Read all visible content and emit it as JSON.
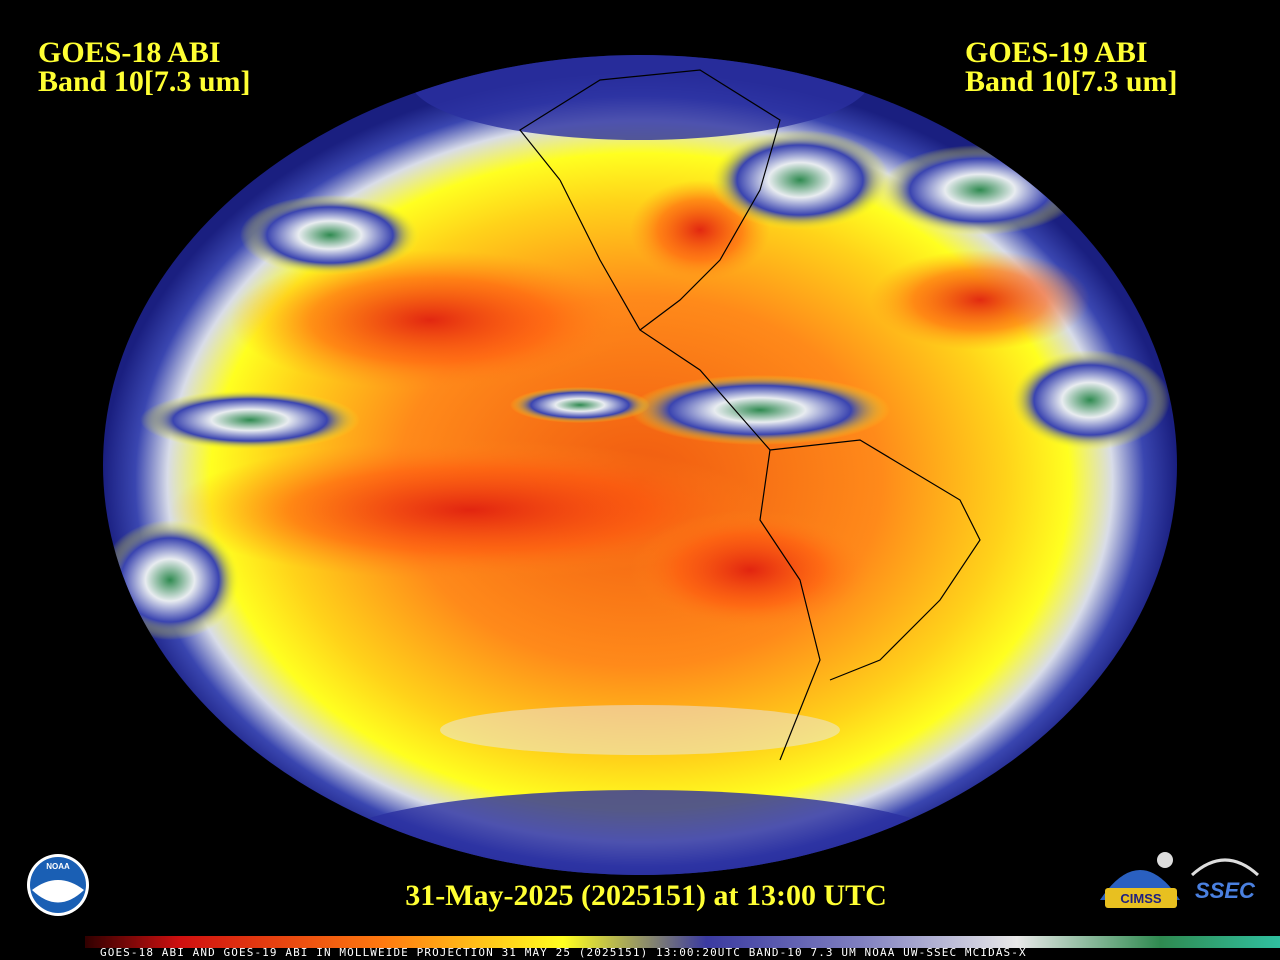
{
  "header": {
    "left": {
      "satellite": "GOES-18 ABI",
      "band": "Band 10[7.3 um]"
    },
    "right": {
      "satellite": "GOES-19 ABI",
      "band": "Band 10[7.3 um]"
    }
  },
  "timestamp": "31-May-2025 (2025151) at 13:00 UTC",
  "footer_strip": "GOES-18 ABI AND GOES-19 ABI IN MOLLWEIDE PROJECTION 31 MAY 25 (2025151) 13:00:20UTC BAND-10 7.3 UM NOAA UW-SSEC MCIDAS-X",
  "logos": {
    "noaa": "NOAA",
    "cimss": "CIMSS",
    "ssec": "SSEC"
  }
}
